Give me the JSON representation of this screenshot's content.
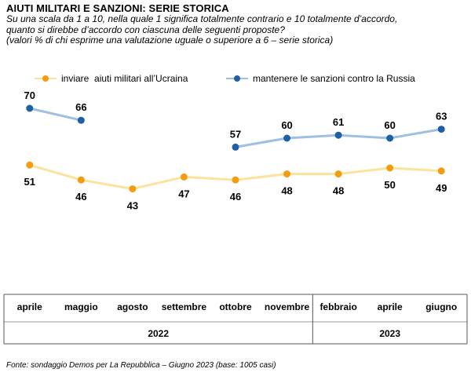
{
  "title": "AIUTI MILITARI E SANZIONI: SERIE STORICA",
  "subtitle": "Su una scala da 1 a 10, nella quale 1 significa totalmente contrario e 10 totalmente d’accordo,\nquanto si direbbe d’accordo con ciascuna delle seguenti proposte?\n(valori % di chi esprime una valutazione uguale o superiore a 6 – serie storica)",
  "source": "Fonte: sondaggio Demos per La Repubblica – Giugno 2023 (base: 1005 casi)",
  "colors": {
    "ucraina_line": "#fbe39c",
    "ucraina_marker": "#f39c12",
    "russia_line": "#9dc0e2",
    "russia_marker": "#1f5fa8"
  },
  "chart_data": {
    "type": "line",
    "categories": [
      "aprile",
      "maggio",
      "agosto",
      "settembre",
      "ottobre",
      "novembre",
      "febbraio",
      "aprile",
      "giugno"
    ],
    "years": [
      {
        "label": "2022",
        "from": 0,
        "to": 5
      },
      {
        "label": "2023",
        "from": 6,
        "to": 8
      }
    ],
    "ylim": [
      30,
      80
    ],
    "legend_position": "top",
    "series": [
      {
        "name": "inviare  aiuti militari all’Ucraina",
        "values": [
          51,
          46,
          43,
          47,
          46,
          48,
          48,
          50,
          49
        ]
      },
      {
        "name": "mantenere le sanzioni contro la Russia",
        "values": [
          70,
          66,
          null,
          null,
          57,
          60,
          61,
          60,
          63
        ]
      }
    ]
  }
}
